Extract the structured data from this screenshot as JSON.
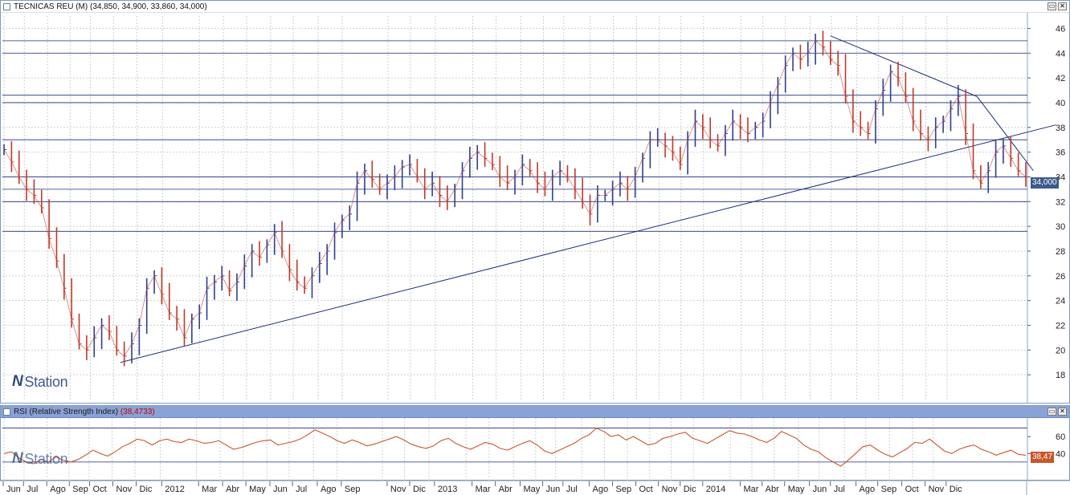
{
  "price_panel": {
    "title": "TECNICAS REU (M)",
    "ohlc_text": " (34,850, 34,900, 33,860, 34,000)",
    "last_value_label": "34,000",
    "logo_text": "Station"
  },
  "rsi_panel": {
    "title": "RSI (Relative Strength Index)",
    "value_text": " (38,4733)",
    "last_value_label": "38,47"
  },
  "window_buttons": {
    "restore": "▭",
    "close": "✕"
  },
  "colors": {
    "price_series": "#c0392b",
    "trendline": "#1a2f7a",
    "rsi_series": "#c8562b",
    "axis_line": "#8aa0c8",
    "grid": "#cfcfcf"
  },
  "chart_data": [
    {
      "type": "line",
      "title": "TECNICAS REU (M)",
      "ylim": [
        16,
        47
      ],
      "yticks": [
        18,
        20,
        22,
        24,
        26,
        28,
        30,
        32,
        34,
        36,
        38,
        40,
        42,
        44,
        46
      ],
      "grid": true,
      "x_labels": [
        "Jun",
        "Jul",
        "Ago",
        "Sep",
        "Oct",
        "Nov",
        "Dic",
        "2012",
        "Mar",
        "Abr",
        "May",
        "Jun",
        "Jul",
        "Ago",
        "Sep",
        "Nov",
        "Dic",
        "2013",
        "Mar",
        "Abr",
        "May",
        "Jun",
        "Jul",
        "Ago",
        "Sep",
        "Oct",
        "Nov",
        "Dic",
        "2014",
        "Mar",
        "Abr",
        "May",
        "Jun",
        "Jul",
        "Ago",
        "Sep",
        "Oct",
        "Nov",
        "Dic"
      ],
      "x_label_index": [
        0.5,
        3.2,
        6.3,
        9.3,
        12.0,
        15.1,
        18.2,
        21.6,
        26.5,
        29.7,
        32.8,
        36.0,
        39.0,
        42.3,
        45.5,
        51.6,
        54.6,
        57.9,
        62.9,
        66.0,
        69.3,
        72.3,
        75.0,
        78.5,
        81.6,
        84.7,
        87.7,
        90.6,
        93.6,
        98.6,
        101.5,
        104.5,
        107.8,
        110.6,
        114.0,
        116.9,
        120.1,
        123.2,
        126.0
      ],
      "series": [
        {
          "values": [
            36.2,
            35.2,
            34.0,
            33.0,
            32.5,
            31.5,
            29.0,
            27.2,
            25.0,
            22.5,
            20.5,
            20.0,
            21.0,
            22.0,
            21.5,
            20.0,
            19.5,
            20.5,
            22.0,
            25.0,
            26.0,
            24.5,
            23.0,
            22.5,
            21.0,
            22.5,
            23.0,
            25.0,
            25.5,
            26.0,
            24.8,
            25.5,
            26.8,
            28.0,
            27.5,
            28.5,
            29.5,
            28.0,
            26.5,
            25.5,
            25.0,
            26.0,
            27.0,
            28.0,
            29.5,
            30.5,
            31.0,
            33.5,
            34.5,
            33.8,
            33.0,
            33.5,
            34.0,
            34.8,
            35.0,
            34.0,
            33.0,
            33.5,
            32.5,
            32.0,
            33.0,
            34.5,
            35.5,
            36.0,
            35.5,
            35.0,
            34.0,
            33.5,
            34.0,
            35.0,
            34.5,
            33.5,
            33.0,
            34.0,
            34.5,
            34.0,
            33.0,
            32.0,
            31.0,
            32.5,
            32.5,
            33.0,
            33.5,
            33.0,
            34.0,
            35.5,
            37.0,
            37.0,
            36.5,
            36.0,
            35.0,
            37.0,
            38.5,
            38.0,
            37.0,
            36.5,
            37.5,
            38.5,
            38.0,
            37.5,
            38.0,
            38.5,
            40.0,
            41.5,
            43.0,
            44.0,
            43.5,
            44.0,
            45.0,
            44.5,
            43.5,
            43.0,
            40.5,
            38.5,
            38.0,
            37.5,
            39.5,
            41.0,
            42.5,
            42.0,
            40.5,
            38.5,
            37.5,
            37.0,
            38.0,
            38.5,
            39.5,
            40.5,
            37.5,
            34.5,
            33.5,
            34.5,
            36.0,
            36.5,
            35.5,
            34.5,
            34.0
          ]
        }
      ]
    },
    {
      "type": "line",
      "title": "RSI (Relative Strength Index)",
      "ylim": [
        10,
        80
      ],
      "yticks": [
        40,
        60
      ],
      "grid": true,
      "series": [
        {
          "values": [
            40,
            42,
            35,
            30,
            28,
            33,
            30,
            36,
            32,
            30,
            33,
            38,
            44,
            40,
            37,
            42,
            48,
            52,
            57,
            55,
            50,
            55,
            57,
            54,
            53,
            57,
            55,
            52,
            53,
            55,
            50,
            45,
            47,
            50,
            53,
            55,
            56,
            50,
            52,
            54,
            57,
            62,
            68,
            64,
            60,
            55,
            52,
            56,
            53,
            49,
            51,
            54,
            57,
            60,
            56,
            51,
            48,
            46,
            49,
            55,
            58,
            52,
            48,
            45,
            49,
            53,
            51,
            46,
            44,
            48,
            52,
            55,
            50,
            43,
            40,
            44,
            48,
            52,
            58,
            62,
            70,
            66,
            60,
            62,
            56,
            60,
            55,
            50,
            52,
            58,
            60,
            63,
            65,
            58,
            55,
            52,
            57,
            62,
            67,
            64,
            63,
            60,
            56,
            53,
            58,
            66,
            62,
            58,
            50,
            45,
            42,
            35,
            30,
            25,
            32,
            40,
            48,
            50,
            44,
            39,
            36,
            41,
            46,
            53,
            52,
            57,
            50,
            43,
            40,
            45,
            48,
            50,
            45,
            42,
            38,
            41,
            44,
            39,
            38
          ]
        }
      ]
    }
  ]
}
